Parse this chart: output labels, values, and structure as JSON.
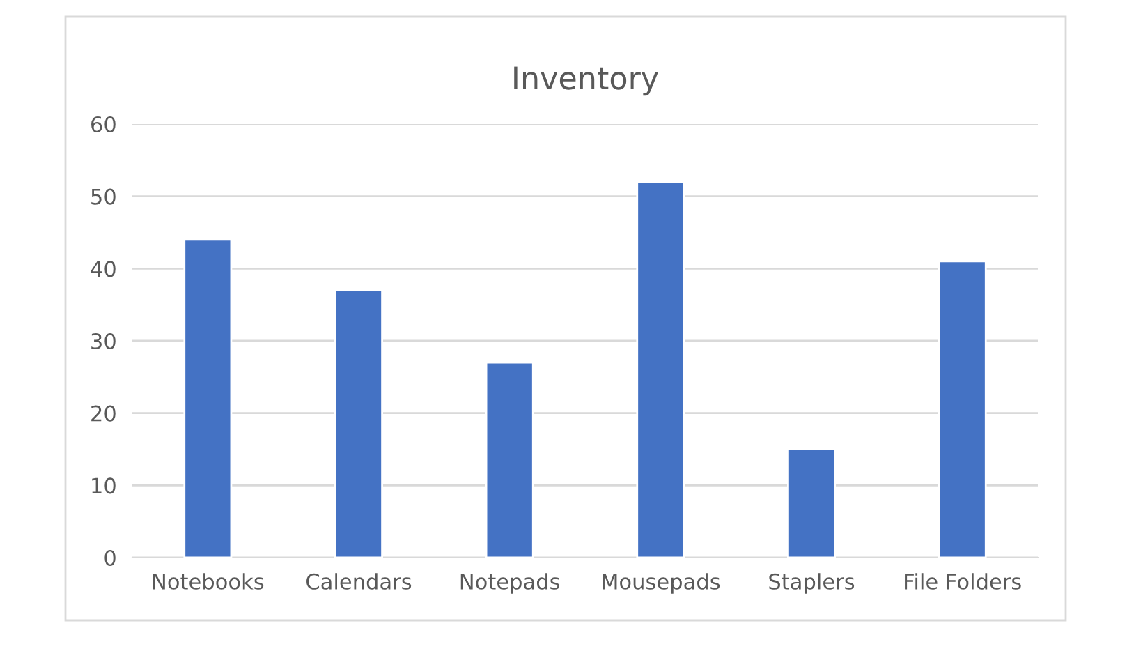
{
  "chart_data": {
    "type": "bar",
    "title": "Inventory",
    "categories": [
      "Notebooks",
      "Calendars",
      "Notepads",
      "Mousepads",
      "Staplers",
      "File Folders"
    ],
    "values": [
      44,
      37,
      27,
      52,
      15,
      41
    ],
    "color": "#4472c4",
    "ylim": [
      0,
      60
    ],
    "yticks": [
      0,
      10,
      20,
      30,
      40,
      50,
      60
    ],
    "grid": "y",
    "legend": false
  }
}
